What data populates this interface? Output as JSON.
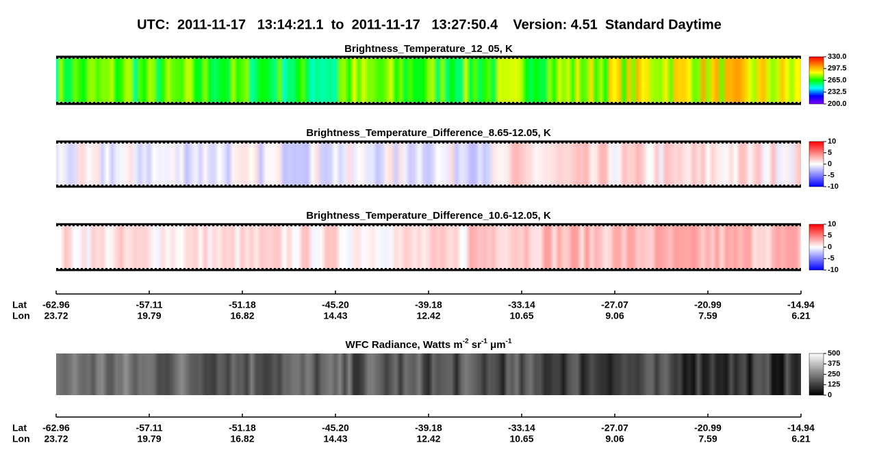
{
  "title": "UTC:  2011-11-17   13:14:21.1  to  2011-11-17   13:27:50.4    Version: 4.51  Standard Daytime",
  "panels": [
    {
      "title": [
        "Brightness_Temperature_12_05, K"
      ],
      "colorbar": {
        "lim": [
          200,
          330
        ],
        "colors": [
          "#8000ff",
          "#0000ff",
          "#00ffff",
          "#00ff00",
          "#ffff00",
          "#ff8000",
          "#ff0000"
        ],
        "ticks": [
          {
            "value": 330,
            "label": "330.0"
          },
          {
            "value": 297.5,
            "label": "297.5"
          },
          {
            "value": 265,
            "label": "265.0"
          },
          {
            "value": 232.5,
            "label": "232.5"
          },
          {
            "value": 200,
            "label": "200.0"
          }
        ]
      }
    },
    {
      "title": [
        "Brightness_Temperature_Difference_8.65-12.05, K"
      ],
      "colorbar": {
        "lim": [
          -10,
          10
        ],
        "colors": [
          "#0000ff",
          "#ffffff",
          "#ff0000"
        ],
        "ticks": [
          10,
          5,
          0,
          -5,
          -10
        ]
      }
    },
    {
      "title": [
        "Brightness_Temperature_Difference_10.6-12.05, K"
      ],
      "colorbar": {
        "lim": [
          -10,
          10
        ],
        "colors": [
          "#0000ff",
          "#ffffff",
          "#ff0000"
        ],
        "ticks": [
          10,
          5,
          0,
          -5,
          -10
        ]
      }
    },
    {
      "title": [
        "WFC Radiance, Watts m",
        "-2",
        " sr",
        "-1",
        " μm",
        "-1"
      ],
      "colorbar": {
        "lim": [
          0,
          500
        ],
        "colors": [
          "#000000",
          "#ffffff"
        ],
        "ticks": [
          500,
          375,
          250,
          125,
          0
        ]
      }
    }
  ],
  "axes": [
    {
      "lat_label": "Lat",
      "lon_label": "Lon",
      "lat": [
        -62.96,
        -57.11,
        -51.18,
        -45.2,
        -39.18,
        -33.14,
        -27.07,
        -20.99,
        -14.94
      ],
      "lat_labels": [
        "-62.96",
        "-57.11",
        "-51.18",
        "-45.20",
        "-39.18",
        "-33.14",
        "-27.07",
        "-20.99",
        "-14.94"
      ],
      "lon": [
        23.72,
        19.79,
        16.82,
        14.43,
        12.42,
        10.65,
        9.06,
        7.59,
        6.21
      ]
    },
    {
      "lat_label": "Lat",
      "lon_label": "Lon",
      "lat": [
        -62.96,
        -57.11,
        -51.18,
        -45.2,
        -39.18,
        -33.14,
        -27.07,
        -20.99,
        -14.94
      ],
      "lat_labels": [
        "-62.96",
        "-57.11",
        "-51.18",
        "-45.20",
        "-39.18",
        "-33.14",
        "-27.07",
        "-20.99",
        "-14.94"
      ],
      "lon": [
        23.72,
        19.79,
        16.82,
        14.43,
        12.42,
        10.65,
        9.06,
        7.59,
        6.21
      ]
    }
  ]
}
